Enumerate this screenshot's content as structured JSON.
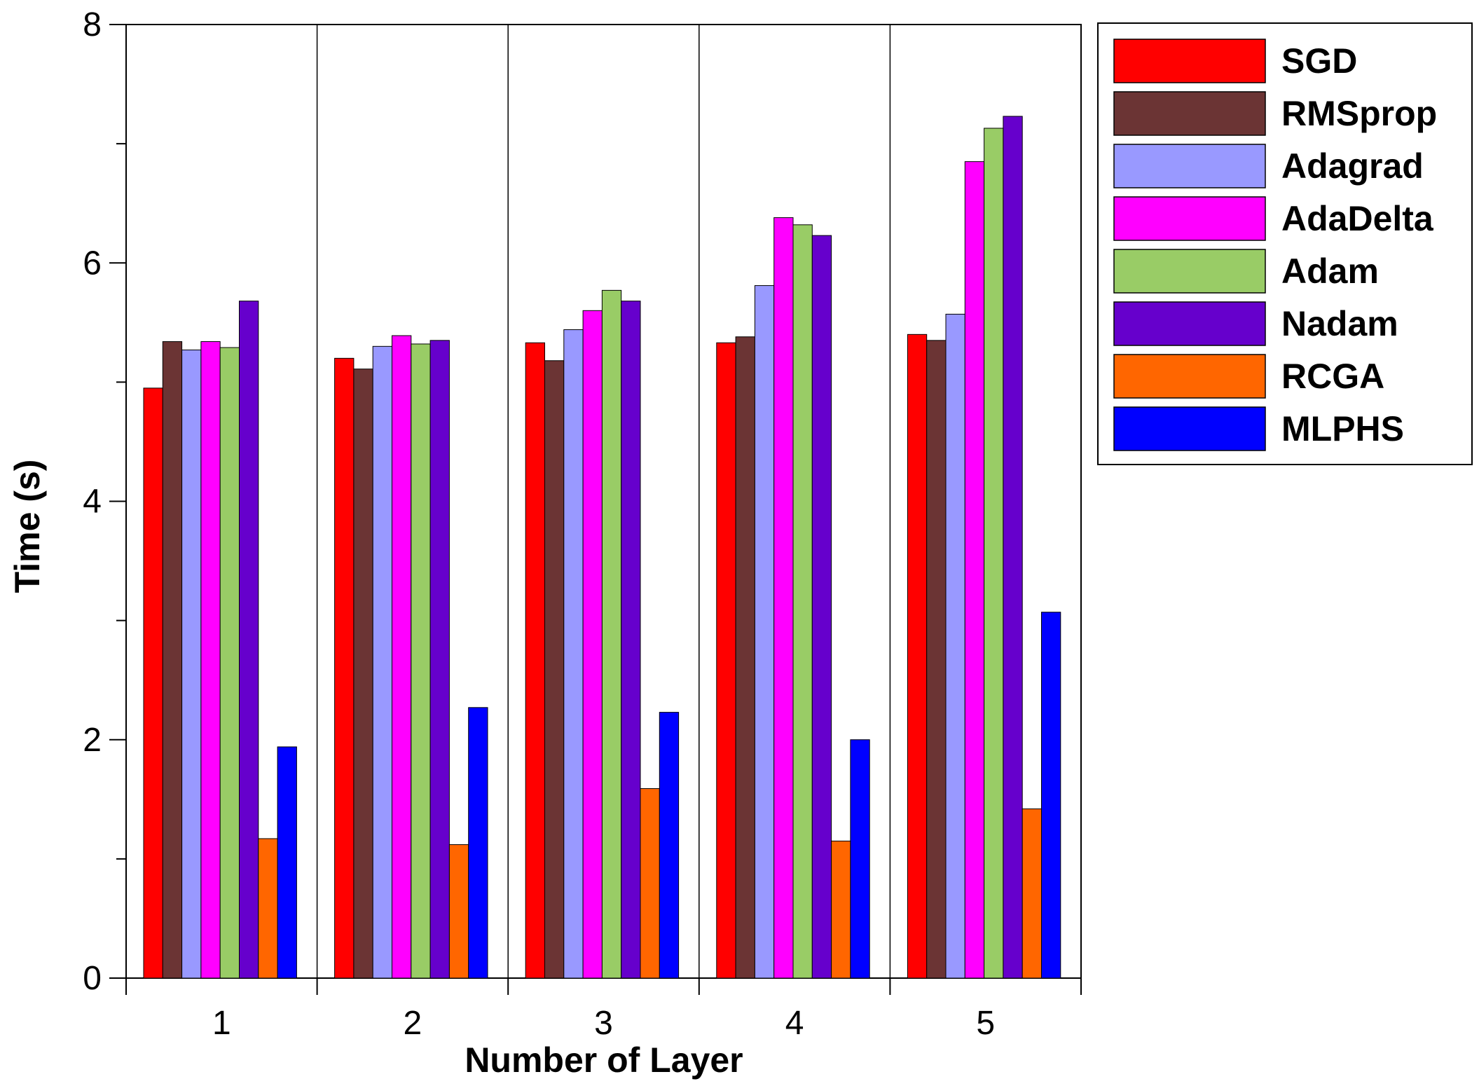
{
  "chart_data": {
    "type": "bar",
    "title": "",
    "xlabel": "Number of Layer",
    "ylabel": "Time (s)",
    "ylim": [
      0,
      8
    ],
    "yticks": [
      0,
      2,
      4,
      6,
      8
    ],
    "categories": [
      "1",
      "2",
      "3",
      "4",
      "5"
    ],
    "grid": "vertical separators between categories",
    "legend_position": "outside-right-top",
    "series": [
      {
        "name": "SGD",
        "color": "#ff0000",
        "values": [
          4.95,
          5.2,
          5.33,
          5.33,
          5.4
        ]
      },
      {
        "name": "RMSprop",
        "color": "#6b3434",
        "values": [
          5.34,
          5.11,
          5.18,
          5.38,
          5.35
        ]
      },
      {
        "name": "Adagrad",
        "color": "#9999ff",
        "values": [
          5.27,
          5.3,
          5.44,
          5.81,
          5.57
        ]
      },
      {
        "name": "AdaDelta",
        "color": "#ff00ff",
        "values": [
          5.34,
          5.39,
          5.6,
          6.38,
          6.85
        ]
      },
      {
        "name": "Adam",
        "color": "#99cc66",
        "values": [
          5.29,
          5.32,
          5.77,
          6.32,
          7.13
        ]
      },
      {
        "name": "Nadam",
        "color": "#6600cc",
        "values": [
          5.68,
          5.35,
          5.68,
          6.23,
          7.23
        ]
      },
      {
        "name": "RCGA",
        "color": "#ff6600",
        "values": [
          1.17,
          1.12,
          1.59,
          1.15,
          1.42
        ]
      },
      {
        "name": "MLPHS",
        "color": "#0000ff",
        "values": [
          1.94,
          2.27,
          2.23,
          2.0,
          3.07
        ]
      }
    ]
  }
}
